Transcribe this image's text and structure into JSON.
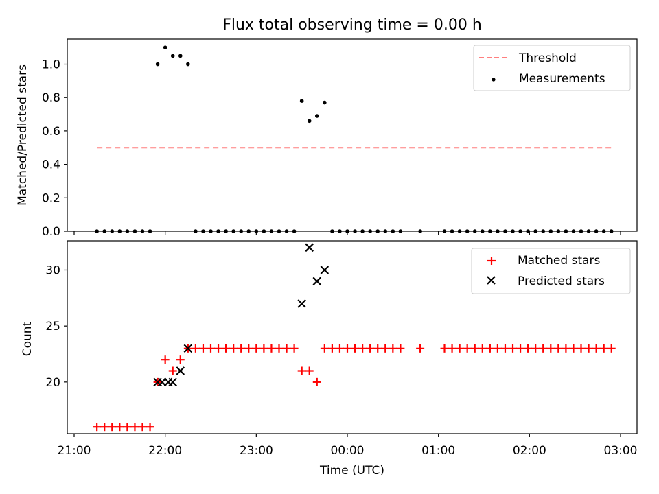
{
  "title": "Flux total observing time = 0.00 h",
  "xlabel": "Time (UTC)",
  "x_ticks": [
    "21:00",
    "22:00",
    "23:00",
    "00:00",
    "01:00",
    "02:00",
    "03:00"
  ],
  "colors": {
    "threshold": "#ff7f7f",
    "measurements": "#000000",
    "matched": "#ff0000",
    "predicted": "#000000"
  },
  "chart_data": [
    {
      "type": "scatter",
      "title": "Flux total observing time = 0.00 h",
      "ylabel": "Matched/Predicted stars",
      "xlabel": "",
      "xlim": [
        "21:00",
        "03:00"
      ],
      "ylim": [
        0,
        1.15
      ],
      "y_ticks": [
        "0.0",
        "0.2",
        "0.4",
        "0.6",
        "0.8",
        "1.0"
      ],
      "grid": false,
      "legend_position": "top-right",
      "threshold": {
        "name": "Threshold",
        "style": "dashed line",
        "value": 0.5,
        "x_range": [
          "21:15",
          "02:54"
        ]
      },
      "series": [
        {
          "name": "Measurements",
          "marker": "dot",
          "points": [
            {
              "x": "21:15",
              "y": 0
            },
            {
              "x": "21:20",
              "y": 0
            },
            {
              "x": "21:25",
              "y": 0
            },
            {
              "x": "21:30",
              "y": 0
            },
            {
              "x": "21:35",
              "y": 0
            },
            {
              "x": "21:40",
              "y": 0
            },
            {
              "x": "21:45",
              "y": 0
            },
            {
              "x": "21:50",
              "y": 0
            },
            {
              "x": "21:55",
              "y": 1.0
            },
            {
              "x": "22:00",
              "y": 1.1
            },
            {
              "x": "22:05",
              "y": 1.05
            },
            {
              "x": "22:10",
              "y": 1.05
            },
            {
              "x": "22:15",
              "y": 1.0
            },
            {
              "x": "22:20",
              "y": 0
            },
            {
              "x": "22:25",
              "y": 0
            },
            {
              "x": "22:30",
              "y": 0
            },
            {
              "x": "22:35",
              "y": 0
            },
            {
              "x": "22:40",
              "y": 0
            },
            {
              "x": "22:45",
              "y": 0
            },
            {
              "x": "22:50",
              "y": 0
            },
            {
              "x": "22:55",
              "y": 0
            },
            {
              "x": "23:00",
              "y": 0
            },
            {
              "x": "23:05",
              "y": 0
            },
            {
              "x": "23:10",
              "y": 0
            },
            {
              "x": "23:15",
              "y": 0
            },
            {
              "x": "23:20",
              "y": 0
            },
            {
              "x": "23:25",
              "y": 0
            },
            {
              "x": "23:30",
              "y": 0.78
            },
            {
              "x": "23:35",
              "y": 0.66
            },
            {
              "x": "23:40",
              "y": 0.69
            },
            {
              "x": "23:45",
              "y": 0.77
            },
            {
              "x": "23:50",
              "y": 0
            },
            {
              "x": "23:55",
              "y": 0
            },
            {
              "x": "00:00",
              "y": 0
            },
            {
              "x": "00:05",
              "y": 0
            },
            {
              "x": "00:10",
              "y": 0
            },
            {
              "x": "00:15",
              "y": 0
            },
            {
              "x": "00:20",
              "y": 0
            },
            {
              "x": "00:25",
              "y": 0
            },
            {
              "x": "00:30",
              "y": 0
            },
            {
              "x": "00:35",
              "y": 0
            },
            {
              "x": "00:48",
              "y": 0
            },
            {
              "x": "01:04",
              "y": 0
            },
            {
              "x": "01:09",
              "y": 0
            },
            {
              "x": "01:14",
              "y": 0
            },
            {
              "x": "01:19",
              "y": 0
            },
            {
              "x": "01:24",
              "y": 0
            },
            {
              "x": "01:29",
              "y": 0
            },
            {
              "x": "01:34",
              "y": 0
            },
            {
              "x": "01:39",
              "y": 0
            },
            {
              "x": "01:44",
              "y": 0
            },
            {
              "x": "01:49",
              "y": 0
            },
            {
              "x": "01:54",
              "y": 0
            },
            {
              "x": "01:59",
              "y": 0
            },
            {
              "x": "02:04",
              "y": 0
            },
            {
              "x": "02:09",
              "y": 0
            },
            {
              "x": "02:14",
              "y": 0
            },
            {
              "x": "02:19",
              "y": 0
            },
            {
              "x": "02:24",
              "y": 0
            },
            {
              "x": "02:29",
              "y": 0
            },
            {
              "x": "02:34",
              "y": 0
            },
            {
              "x": "02:39",
              "y": 0
            },
            {
              "x": "02:44",
              "y": 0
            },
            {
              "x": "02:49",
              "y": 0
            },
            {
              "x": "02:54",
              "y": 0
            }
          ]
        }
      ]
    },
    {
      "type": "scatter",
      "ylabel": "Count",
      "xlabel": "Time (UTC)",
      "xlim": [
        "21:00",
        "03:00"
      ],
      "ylim": [
        15.4,
        32.6
      ],
      "y_ticks": [
        "20",
        "25",
        "30"
      ],
      "grid": false,
      "legend_position": "top-right",
      "series": [
        {
          "name": "Matched stars",
          "marker": "plus",
          "points": [
            {
              "x": "21:15",
              "y": 16
            },
            {
              "x": "21:20",
              "y": 16
            },
            {
              "x": "21:25",
              "y": 16
            },
            {
              "x": "21:30",
              "y": 16
            },
            {
              "x": "21:35",
              "y": 16
            },
            {
              "x": "21:40",
              "y": 16
            },
            {
              "x": "21:45",
              "y": 16
            },
            {
              "x": "21:50",
              "y": 16
            },
            {
              "x": "21:55",
              "y": 20
            },
            {
              "x": "22:00",
              "y": 22
            },
            {
              "x": "22:05",
              "y": 21
            },
            {
              "x": "22:10",
              "y": 22
            },
            {
              "x": "22:15",
              "y": 23
            },
            {
              "x": "22:20",
              "y": 23
            },
            {
              "x": "22:25",
              "y": 23
            },
            {
              "x": "22:30",
              "y": 23
            },
            {
              "x": "22:35",
              "y": 23
            },
            {
              "x": "22:40",
              "y": 23
            },
            {
              "x": "22:45",
              "y": 23
            },
            {
              "x": "22:50",
              "y": 23
            },
            {
              "x": "22:55",
              "y": 23
            },
            {
              "x": "23:00",
              "y": 23
            },
            {
              "x": "23:05",
              "y": 23
            },
            {
              "x": "23:10",
              "y": 23
            },
            {
              "x": "23:15",
              "y": 23
            },
            {
              "x": "23:20",
              "y": 23
            },
            {
              "x": "23:25",
              "y": 23
            },
            {
              "x": "23:30",
              "y": 21
            },
            {
              "x": "23:35",
              "y": 21
            },
            {
              "x": "23:40",
              "y": 20
            },
            {
              "x": "23:45",
              "y": 23
            },
            {
              "x": "23:50",
              "y": 23
            },
            {
              "x": "23:55",
              "y": 23
            },
            {
              "x": "00:00",
              "y": 23
            },
            {
              "x": "00:05",
              "y": 23
            },
            {
              "x": "00:10",
              "y": 23
            },
            {
              "x": "00:15",
              "y": 23
            },
            {
              "x": "00:20",
              "y": 23
            },
            {
              "x": "00:25",
              "y": 23
            },
            {
              "x": "00:30",
              "y": 23
            },
            {
              "x": "00:35",
              "y": 23
            },
            {
              "x": "00:48",
              "y": 23
            },
            {
              "x": "01:04",
              "y": 23
            },
            {
              "x": "01:09",
              "y": 23
            },
            {
              "x": "01:14",
              "y": 23
            },
            {
              "x": "01:19",
              "y": 23
            },
            {
              "x": "01:24",
              "y": 23
            },
            {
              "x": "01:29",
              "y": 23
            },
            {
              "x": "01:34",
              "y": 23
            },
            {
              "x": "01:39",
              "y": 23
            },
            {
              "x": "01:44",
              "y": 23
            },
            {
              "x": "01:49",
              "y": 23
            },
            {
              "x": "01:54",
              "y": 23
            },
            {
              "x": "01:59",
              "y": 23
            },
            {
              "x": "02:04",
              "y": 23
            },
            {
              "x": "02:09",
              "y": 23
            },
            {
              "x": "02:14",
              "y": 23
            },
            {
              "x": "02:19",
              "y": 23
            },
            {
              "x": "02:24",
              "y": 23
            },
            {
              "x": "02:29",
              "y": 23
            },
            {
              "x": "02:34",
              "y": 23
            },
            {
              "x": "02:39",
              "y": 23
            },
            {
              "x": "02:44",
              "y": 23
            },
            {
              "x": "02:49",
              "y": 23
            },
            {
              "x": "02:54",
              "y": 23
            }
          ]
        },
        {
          "name": "Predicted stars",
          "marker": "x",
          "points": [
            {
              "x": "21:55",
              "y": 20
            },
            {
              "x": "21:58",
              "y": 20
            },
            {
              "x": "22:02",
              "y": 20
            },
            {
              "x": "22:05",
              "y": 20
            },
            {
              "x": "22:10",
              "y": 21
            },
            {
              "x": "22:15",
              "y": 23
            },
            {
              "x": "23:30",
              "y": 27
            },
            {
              "x": "23:35",
              "y": 32
            },
            {
              "x": "23:40",
              "y": 29
            },
            {
              "x": "23:45",
              "y": 30
            }
          ]
        }
      ]
    }
  ]
}
